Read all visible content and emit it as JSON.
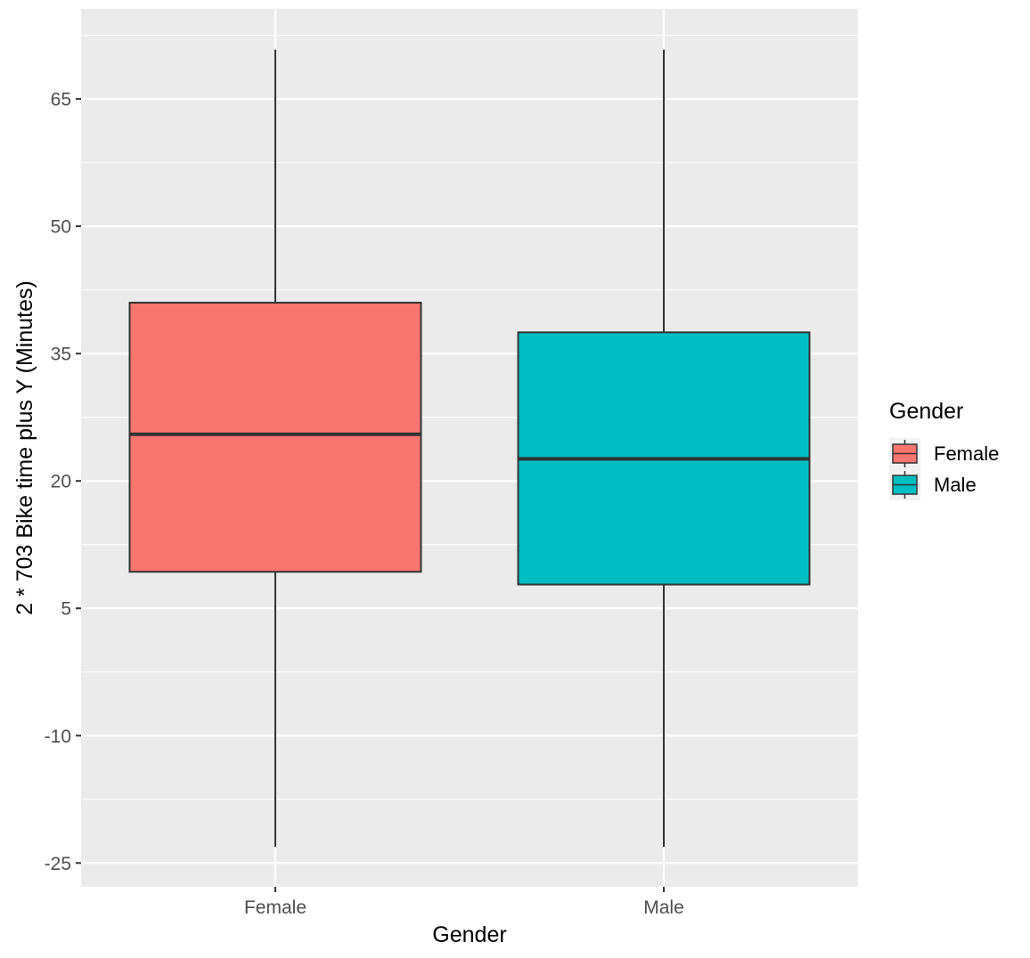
{
  "chart_data": {
    "type": "box",
    "title": "",
    "xlabel": "Gender",
    "ylabel": "2 * 703 Bike time plus Y (Minutes)",
    "ylim": [
      -27.8,
      75.6
    ],
    "yticks": [
      -25,
      -10,
      5,
      20,
      35,
      50,
      65
    ],
    "ytick_labels": [
      "-25",
      "-10",
      "5",
      "20",
      "35",
      "50",
      "65"
    ],
    "categories": [
      "Female",
      "Male"
    ],
    "grid": true,
    "boxes": [
      {
        "category": "Female",
        "min": -23.1,
        "q1": 9.3,
        "median": 25.5,
        "q3": 41.0,
        "max": 70.8,
        "fill": "#F8766D"
      },
      {
        "category": "Male",
        "min": -23.1,
        "q1": 7.8,
        "median": 22.6,
        "q3": 37.5,
        "max": 70.8,
        "fill": "#00BFC4"
      }
    ],
    "legend": {
      "title": "Gender",
      "placement": "right",
      "entries": [
        {
          "label": "Female",
          "color": "#F8766D"
        },
        {
          "label": "Male",
          "color": "#00BFC4"
        }
      ]
    }
  }
}
